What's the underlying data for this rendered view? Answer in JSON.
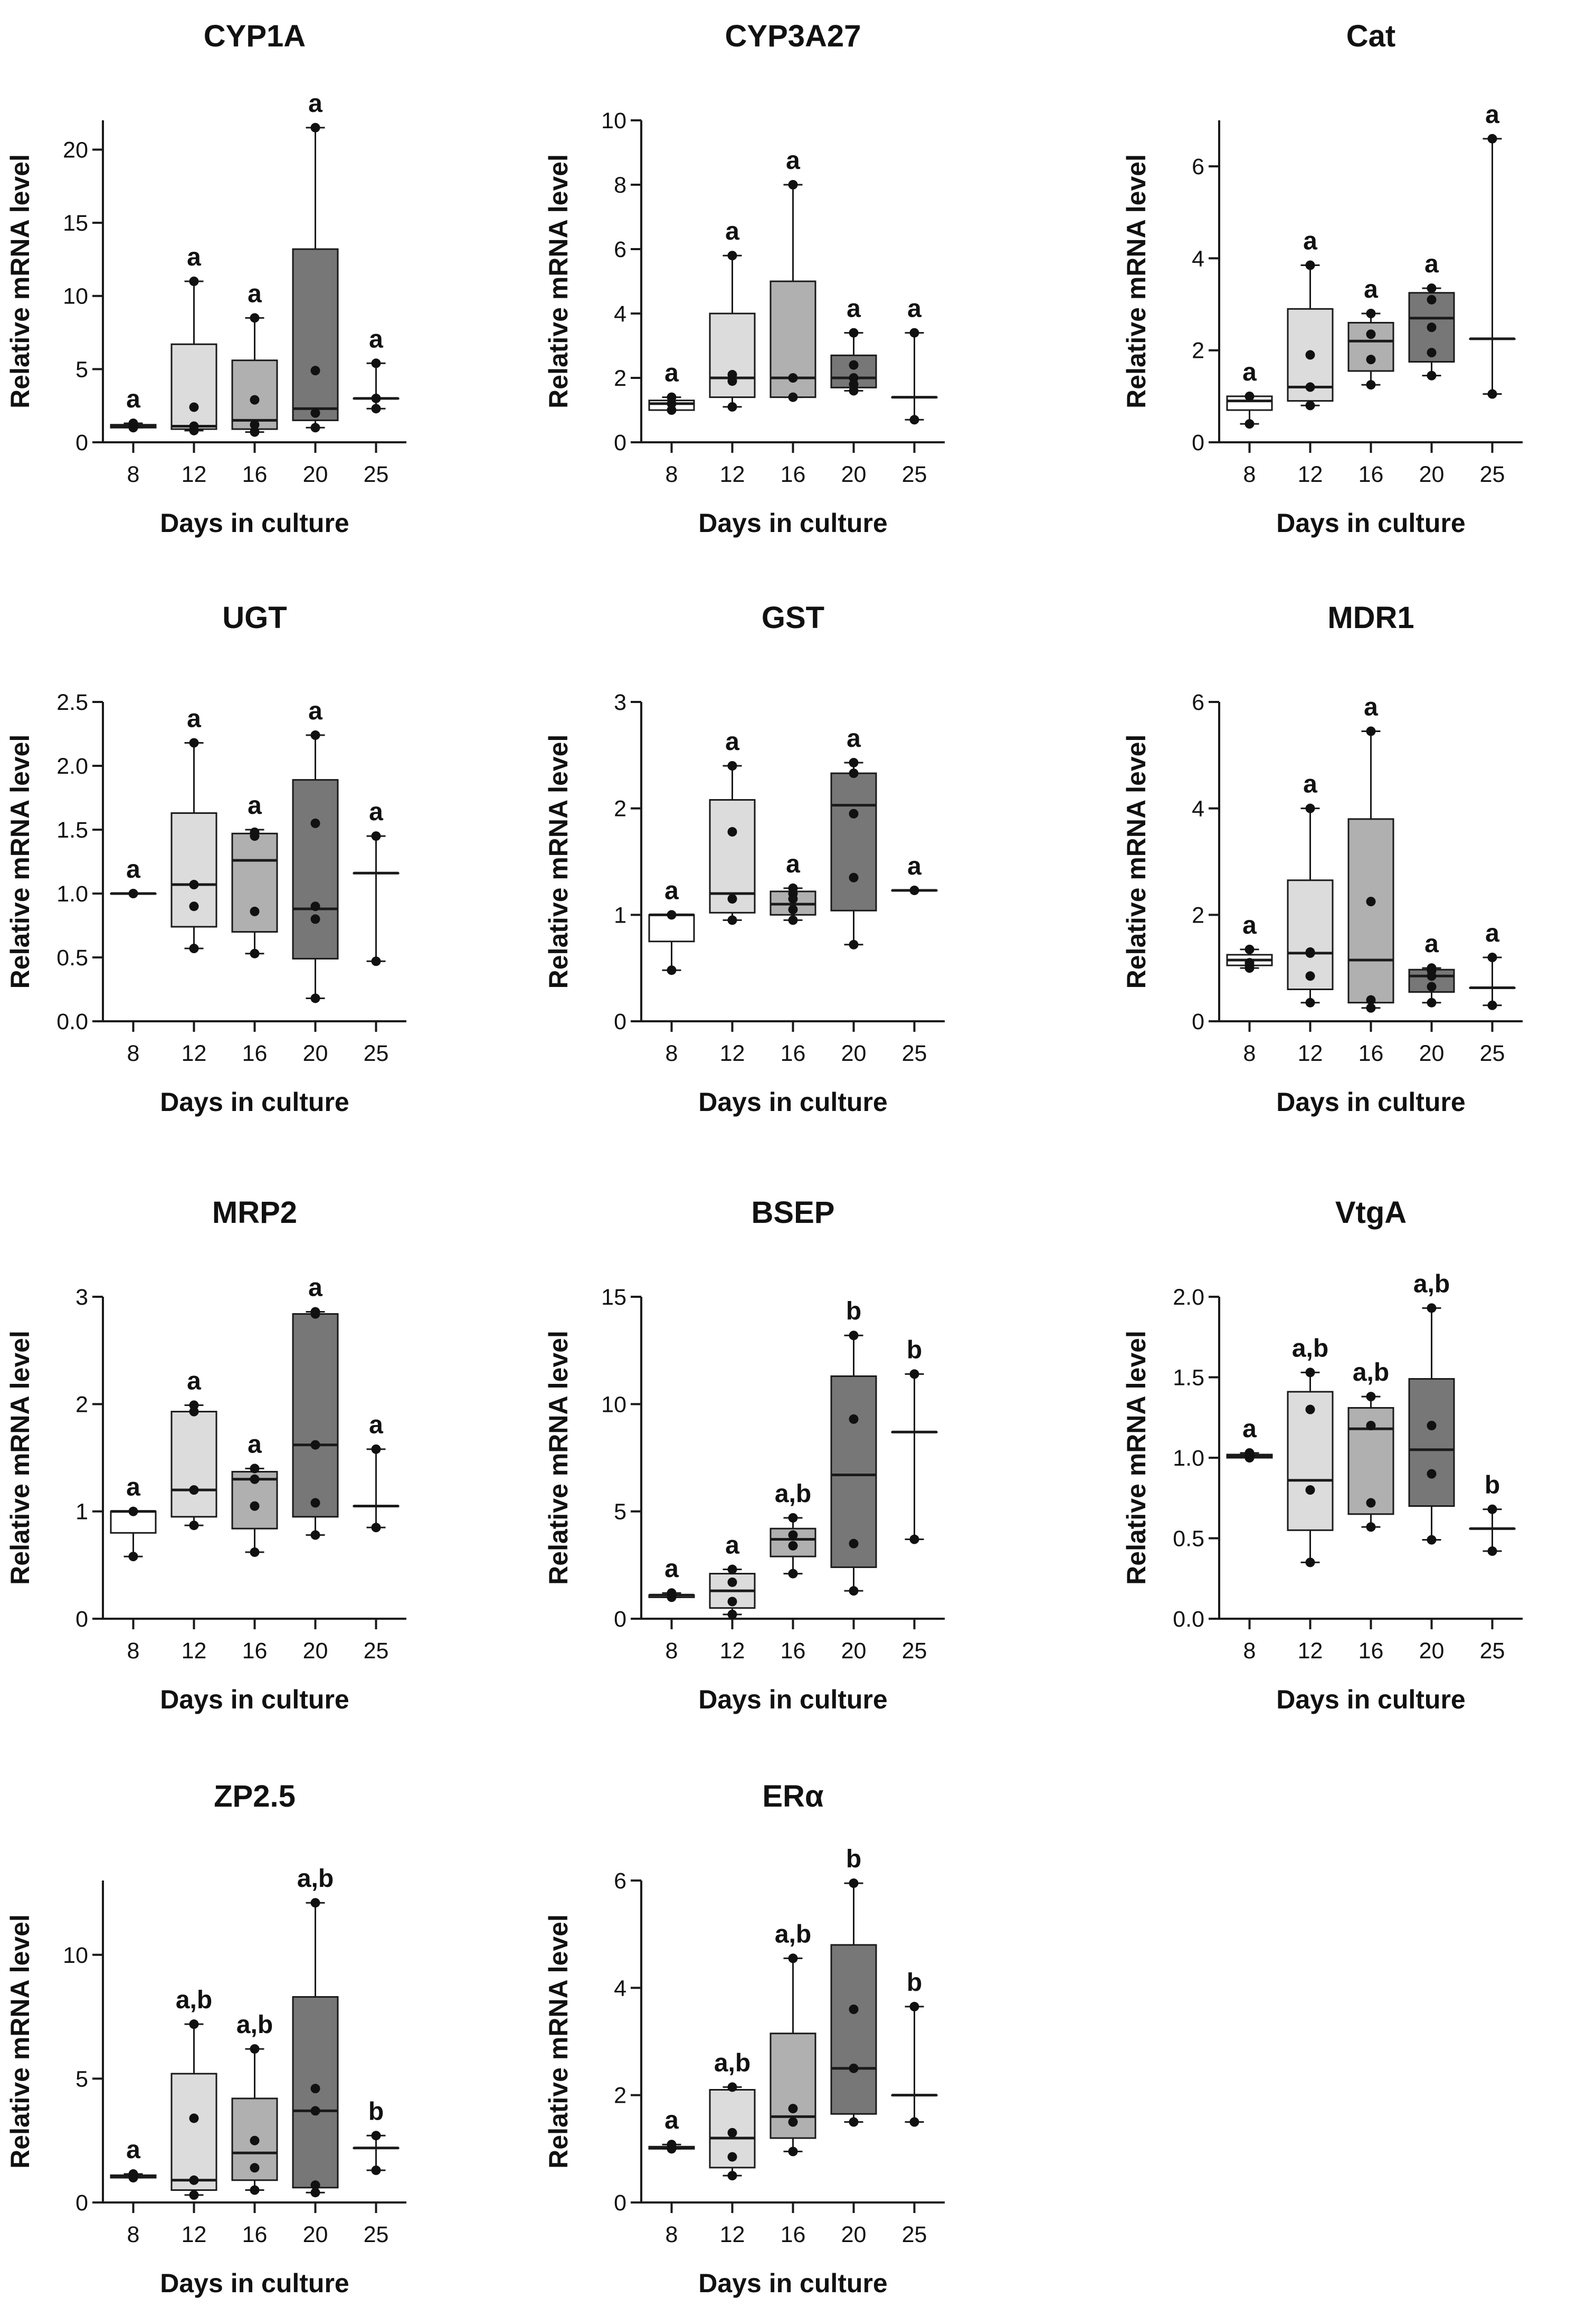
{
  "figure": {
    "xlabel": "Days in culture",
    "ylabel": "Relative mRNA level"
  },
  "colors": {
    "fills": [
      "#ffffff",
      "#dcdcdc",
      "#b0b0b0",
      "#777777",
      "#ffffff"
    ],
    "stroke": "#1a1a1a"
  },
  "chart_data": [
    {
      "type": "box",
      "title": "CYP1A",
      "xlabel": "Days in culture",
      "ylabel": "Relative mRNA level",
      "categories": [
        "8",
        "12",
        "16",
        "20",
        "25"
      ],
      "ylim": [
        0,
        22
      ],
      "yticks": [
        0,
        5,
        10,
        15,
        20
      ],
      "ytick_labels": [
        "0",
        "5",
        "10",
        "15",
        "20"
      ],
      "letters": [
        "a",
        "a",
        "a",
        "a",
        "a"
      ],
      "boxes": [
        {
          "min": 1.0,
          "q1": 1.0,
          "median": 1.1,
          "q3": 1.2,
          "max": 1.3,
          "points": [
            1.0,
            1.1,
            1.3
          ]
        },
        {
          "min": 0.8,
          "q1": 0.9,
          "median": 1.1,
          "q3": 6.7,
          "max": 11.0,
          "points": [
            0.8,
            1.1,
            2.4,
            11.0
          ]
        },
        {
          "min": 0.7,
          "q1": 0.9,
          "median": 1.5,
          "q3": 5.6,
          "max": 8.5,
          "points": [
            0.7,
            1.2,
            2.9,
            8.5
          ]
        },
        {
          "min": 1.0,
          "q1": 1.5,
          "median": 2.3,
          "q3": 13.2,
          "max": 21.5,
          "points": [
            1.0,
            2.0,
            4.9,
            21.5
          ]
        },
        {
          "min": 2.3,
          "q1": 3.0,
          "median": 3.0,
          "q3": 3.0,
          "max": 5.4,
          "points": [
            2.3,
            3.0,
            5.4
          ]
        }
      ]
    },
    {
      "type": "box",
      "title": "CYP3A27",
      "xlabel": "Days in culture",
      "ylabel": "Relative mRNA level",
      "categories": [
        "8",
        "12",
        "16",
        "20",
        "25"
      ],
      "ylim": [
        0,
        10
      ],
      "yticks": [
        0,
        2,
        4,
        6,
        8,
        10
      ],
      "ytick_labels": [
        "0",
        "2",
        "4",
        "6",
        "8",
        "10"
      ],
      "letters": [
        "a",
        "a",
        "a",
        "a",
        "a"
      ],
      "boxes": [
        {
          "min": 1.0,
          "q1": 1.0,
          "median": 1.2,
          "q3": 1.3,
          "max": 1.4,
          "points": [
            1.0,
            1.2,
            1.4
          ]
        },
        {
          "min": 1.1,
          "q1": 1.4,
          "median": 2.0,
          "q3": 4.0,
          "max": 5.8,
          "points": [
            1.1,
            1.9,
            2.1,
            5.8
          ]
        },
        {
          "min": 1.4,
          "q1": 1.4,
          "median": 2.0,
          "q3": 5.0,
          "max": 8.0,
          "points": [
            1.4,
            2.0,
            8.0
          ]
        },
        {
          "min": 1.6,
          "q1": 1.7,
          "median": 2.0,
          "q3": 2.7,
          "max": 3.4,
          "points": [
            1.6,
            1.8,
            2.0,
            2.4,
            3.4
          ]
        },
        {
          "min": 0.7,
          "q1": 1.4,
          "median": 1.4,
          "q3": 1.4,
          "max": 3.4,
          "points": [
            0.7,
            3.4
          ]
        }
      ]
    },
    {
      "type": "box",
      "title": "Cat",
      "xlabel": "Days in culture",
      "ylabel": "Relative mRNA level",
      "categories": [
        "8",
        "12",
        "16",
        "20",
        "25"
      ],
      "ylim": [
        0,
        7
      ],
      "yticks": [
        0,
        2,
        4,
        6
      ],
      "ytick_labels": [
        "0",
        "2",
        "4",
        "6"
      ],
      "letters": [
        "a",
        "a",
        "a",
        "a",
        "a"
      ],
      "boxes": [
        {
          "min": 0.4,
          "q1": 0.7,
          "median": 0.9,
          "q3": 1.0,
          "max": 1.0,
          "points": [
            0.4,
            1.0
          ]
        },
        {
          "min": 0.8,
          "q1": 0.9,
          "median": 1.2,
          "q3": 2.9,
          "max": 3.85,
          "points": [
            0.8,
            1.2,
            1.9,
            3.85
          ]
        },
        {
          "min": 1.25,
          "q1": 1.55,
          "median": 2.2,
          "q3": 2.6,
          "max": 2.8,
          "points": [
            1.25,
            1.8,
            2.35,
            2.8
          ]
        },
        {
          "min": 1.45,
          "q1": 1.75,
          "median": 2.7,
          "q3": 3.25,
          "max": 3.35,
          "points": [
            1.45,
            1.95,
            2.5,
            3.1,
            3.35
          ]
        },
        {
          "min": 1.05,
          "q1": 2.25,
          "median": 2.25,
          "q3": 2.25,
          "max": 6.6,
          "points": [
            1.05,
            6.6
          ]
        }
      ]
    },
    {
      "type": "box",
      "title": "UGT",
      "xlabel": "Days in culture",
      "ylabel": "Relative mRNA level",
      "categories": [
        "8",
        "12",
        "16",
        "20",
        "25"
      ],
      "ylim": [
        0,
        2.5
      ],
      "yticks": [
        0,
        0.5,
        1,
        1.5,
        2,
        2.5
      ],
      "ytick_labels": [
        "0.0",
        "0.5",
        "1.0",
        "1.5",
        "2.0",
        "2.5"
      ],
      "letters": [
        "a",
        "a",
        "a",
        "a",
        "a"
      ],
      "boxes": [
        {
          "min": 1.0,
          "q1": 1.0,
          "median": 1.0,
          "q3": 1.0,
          "max": 1.0,
          "points": [
            1.0
          ]
        },
        {
          "min": 0.57,
          "q1": 0.74,
          "median": 1.07,
          "q3": 1.63,
          "max": 2.18,
          "points": [
            0.57,
            0.9,
            1.07,
            2.18
          ]
        },
        {
          "min": 0.53,
          "q1": 0.7,
          "median": 1.26,
          "q3": 1.47,
          "max": 1.5,
          "points": [
            0.53,
            0.86,
            1.45,
            1.48
          ]
        },
        {
          "min": 0.18,
          "q1": 0.49,
          "median": 0.88,
          "q3": 1.89,
          "max": 2.24,
          "points": [
            0.18,
            0.8,
            0.9,
            1.55,
            2.24
          ]
        },
        {
          "min": 0.47,
          "q1": 1.16,
          "median": 1.16,
          "q3": 1.16,
          "max": 1.45,
          "points": [
            0.47,
            1.45
          ]
        }
      ]
    },
    {
      "type": "box",
      "title": "GST",
      "xlabel": "Days in culture",
      "ylabel": "Relative mRNA level",
      "categories": [
        "8",
        "12",
        "16",
        "20",
        "25"
      ],
      "ylim": [
        0,
        3
      ],
      "yticks": [
        0,
        1,
        2,
        3
      ],
      "ytick_labels": [
        "0",
        "1",
        "2",
        "3"
      ],
      "letters": [
        "a",
        "a",
        "a",
        "a",
        "a"
      ],
      "boxes": [
        {
          "min": 0.48,
          "q1": 0.75,
          "median": 1.0,
          "q3": 1.0,
          "max": 1.0,
          "points": [
            0.48,
            1.0
          ]
        },
        {
          "min": 0.95,
          "q1": 1.02,
          "median": 1.2,
          "q3": 2.08,
          "max": 2.4,
          "points": [
            0.95,
            1.15,
            1.78,
            2.4
          ]
        },
        {
          "min": 0.95,
          "q1": 1.0,
          "median": 1.1,
          "q3": 1.22,
          "max": 1.25,
          "points": [
            0.95,
            1.05,
            1.15,
            1.2,
            1.25
          ]
        },
        {
          "min": 0.72,
          "q1": 1.04,
          "median": 2.03,
          "q3": 2.33,
          "max": 2.43,
          "points": [
            0.72,
            1.35,
            1.95,
            2.33,
            2.43
          ]
        },
        {
          "min": 1.23,
          "q1": 1.23,
          "median": 1.23,
          "q3": 1.23,
          "max": 1.23,
          "points": [
            1.23
          ]
        }
      ]
    },
    {
      "type": "box",
      "title": "MDR1",
      "xlabel": "Days in culture",
      "ylabel": "Relative mRNA level",
      "categories": [
        "8",
        "12",
        "16",
        "20",
        "25"
      ],
      "ylim": [
        0,
        6
      ],
      "yticks": [
        0,
        2,
        4,
        6
      ],
      "ytick_labels": [
        "0",
        "2",
        "4",
        "6"
      ],
      "letters": [
        "a",
        "a",
        "a",
        "a",
        "a"
      ],
      "boxes": [
        {
          "min": 1.0,
          "q1": 1.05,
          "median": 1.15,
          "q3": 1.25,
          "max": 1.35,
          "points": [
            1.0,
            1.05,
            1.1,
            1.35
          ]
        },
        {
          "min": 0.35,
          "q1": 0.6,
          "median": 1.28,
          "q3": 2.65,
          "max": 4.0,
          "points": [
            0.35,
            0.85,
            1.28,
            1.3,
            4.0
          ]
        },
        {
          "min": 0.25,
          "q1": 0.35,
          "median": 1.15,
          "q3": 3.8,
          "max": 5.45,
          "points": [
            0.25,
            0.4,
            2.25,
            5.45
          ]
        },
        {
          "min": 0.35,
          "q1": 0.55,
          "median": 0.85,
          "q3": 0.97,
          "max": 1.0,
          "points": [
            0.35,
            0.65,
            0.85,
            0.95,
            1.0
          ]
        },
        {
          "min": 0.3,
          "q1": 0.63,
          "median": 0.63,
          "q3": 0.63,
          "max": 1.2,
          "points": [
            0.3,
            1.2
          ]
        }
      ]
    },
    {
      "type": "box",
      "title": "MRP2",
      "xlabel": "Days in culture",
      "ylabel": "Relative mRNA level",
      "categories": [
        "8",
        "12",
        "16",
        "20",
        "25"
      ],
      "ylim": [
        0,
        3
      ],
      "yticks": [
        0,
        1,
        2,
        3
      ],
      "ytick_labels": [
        "0",
        "1",
        "2",
        "3"
      ],
      "letters": [
        "a",
        "a",
        "a",
        "a",
        "a"
      ],
      "boxes": [
        {
          "min": 0.58,
          "q1": 0.8,
          "median": 1.0,
          "q3": 1.0,
          "max": 1.0,
          "points": [
            0.58,
            1.0
          ]
        },
        {
          "min": 0.87,
          "q1": 0.95,
          "median": 1.2,
          "q3": 1.93,
          "max": 1.99,
          "points": [
            0.87,
            1.2,
            1.93,
            1.99
          ]
        },
        {
          "min": 0.62,
          "q1": 0.84,
          "median": 1.3,
          "q3": 1.37,
          "max": 1.4,
          "points": [
            0.62,
            1.05,
            1.3,
            1.4
          ]
        },
        {
          "min": 0.78,
          "q1": 0.95,
          "median": 1.62,
          "q3": 2.84,
          "max": 2.86,
          "points": [
            0.78,
            1.08,
            1.62,
            2.84,
            2.86
          ]
        },
        {
          "min": 0.85,
          "q1": 1.05,
          "median": 1.05,
          "q3": 1.05,
          "max": 1.58,
          "points": [
            0.85,
            1.58
          ]
        }
      ]
    },
    {
      "type": "box",
      "title": "BSEP",
      "xlabel": "Days in culture",
      "ylabel": "Relative mRNA level",
      "categories": [
        "8",
        "12",
        "16",
        "20",
        "25"
      ],
      "ylim": [
        0,
        15
      ],
      "yticks": [
        0,
        5,
        10,
        15
      ],
      "ytick_labels": [
        "0",
        "5",
        "10",
        "15"
      ],
      "letters": [
        "a",
        "a",
        "a,b",
        "b",
        "b"
      ],
      "boxes": [
        {
          "min": 1.0,
          "q1": 1.0,
          "median": 1.1,
          "q3": 1.1,
          "max": 1.2,
          "points": [
            1.0,
            1.1,
            1.2
          ]
        },
        {
          "min": 0.2,
          "q1": 0.5,
          "median": 1.3,
          "q3": 2.1,
          "max": 2.3,
          "points": [
            0.2,
            0.8,
            1.7,
            2.3
          ]
        },
        {
          "min": 2.1,
          "q1": 2.9,
          "median": 3.7,
          "q3": 4.2,
          "max": 4.7,
          "points": [
            2.1,
            3.4,
            3.9,
            4.7
          ]
        },
        {
          "min": 1.3,
          "q1": 2.4,
          "median": 6.7,
          "q3": 11.3,
          "max": 13.2,
          "points": [
            1.3,
            3.5,
            9.3,
            13.2
          ]
        },
        {
          "min": 3.7,
          "q1": 8.7,
          "median": 8.7,
          "q3": 8.7,
          "max": 11.4,
          "points": [
            3.7,
            11.4
          ]
        }
      ]
    },
    {
      "type": "box",
      "title": "VtgA",
      "xlabel": "Days in culture",
      "ylabel": "Relative mRNA level",
      "categories": [
        "8",
        "12",
        "16",
        "20",
        "25"
      ],
      "ylim": [
        0,
        2
      ],
      "yticks": [
        0,
        0.5,
        1,
        1.5,
        2
      ],
      "ytick_labels": [
        "0.0",
        "0.5",
        "1.0",
        "1.5",
        "2.0"
      ],
      "letters": [
        "a",
        "a,b",
        "a,b",
        "a,b",
        "b"
      ],
      "boxes": [
        {
          "min": 1.0,
          "q1": 1.0,
          "median": 1.01,
          "q3": 1.02,
          "max": 1.03,
          "points": [
            1.0,
            1.01,
            1.03
          ]
        },
        {
          "min": 0.35,
          "q1": 0.55,
          "median": 0.86,
          "q3": 1.41,
          "max": 1.53,
          "points": [
            0.35,
            0.8,
            1.3,
            1.53
          ]
        },
        {
          "min": 0.57,
          "q1": 0.65,
          "median": 1.18,
          "q3": 1.31,
          "max": 1.38,
          "points": [
            0.57,
            0.72,
            1.2,
            1.38
          ]
        },
        {
          "min": 0.49,
          "q1": 0.7,
          "median": 1.05,
          "q3": 1.49,
          "max": 1.93,
          "points": [
            0.49,
            0.9,
            1.2,
            1.93
          ]
        },
        {
          "min": 0.42,
          "q1": 0.56,
          "median": 0.56,
          "q3": 0.56,
          "max": 0.68,
          "points": [
            0.42,
            0.68
          ]
        }
      ]
    },
    {
      "type": "box",
      "title": "ZP2.5",
      "xlabel": "Days in culture",
      "ylabel": "Relative mRNA level",
      "categories": [
        "8",
        "12",
        "16",
        "20",
        "25"
      ],
      "ylim": [
        0,
        13
      ],
      "yticks": [
        0,
        5,
        10
      ],
      "ytick_labels": [
        "0",
        "5",
        "10"
      ],
      "letters": [
        "a",
        "a,b",
        "a,b",
        "a,b",
        "b"
      ],
      "boxes": [
        {
          "min": 1.0,
          "q1": 1.0,
          "median": 1.05,
          "q3": 1.1,
          "max": 1.15,
          "points": [
            1.0,
            1.05,
            1.15
          ]
        },
        {
          "min": 0.3,
          "q1": 0.5,
          "median": 0.9,
          "q3": 5.2,
          "max": 7.2,
          "points": [
            0.3,
            0.9,
            3.4,
            7.2
          ]
        },
        {
          "min": 0.5,
          "q1": 0.9,
          "median": 2.0,
          "q3": 4.2,
          "max": 6.2,
          "points": [
            0.5,
            1.4,
            2.5,
            6.2
          ]
        },
        {
          "min": 0.4,
          "q1": 0.6,
          "median": 3.7,
          "q3": 8.3,
          "max": 12.1,
          "points": [
            0.4,
            0.7,
            3.7,
            4.6,
            12.1
          ]
        },
        {
          "min": 1.3,
          "q1": 2.2,
          "median": 2.2,
          "q3": 2.2,
          "max": 2.7,
          "points": [
            1.3,
            2.7
          ]
        }
      ]
    },
    {
      "type": "box",
      "title": "ERα",
      "xlabel": "Days in culture",
      "ylabel": "Relative mRNA level",
      "categories": [
        "8",
        "12",
        "16",
        "20",
        "25"
      ],
      "ylim": [
        0,
        6
      ],
      "yticks": [
        0,
        2,
        4,
        6
      ],
      "ytick_labels": [
        "0",
        "2",
        "4",
        "6"
      ],
      "letters": [
        "a",
        "a,b",
        "a,b",
        "b",
        "b"
      ],
      "boxes": [
        {
          "min": 1.0,
          "q1": 1.0,
          "median": 1.02,
          "q3": 1.04,
          "max": 1.08,
          "points": [
            1.0,
            1.08
          ]
        },
        {
          "min": 0.5,
          "q1": 0.65,
          "median": 1.2,
          "q3": 2.1,
          "max": 2.15,
          "points": [
            0.5,
            0.85,
            1.3,
            2.15
          ]
        },
        {
          "min": 0.95,
          "q1": 1.2,
          "median": 1.6,
          "q3": 3.15,
          "max": 4.55,
          "points": [
            0.95,
            1.5,
            1.75,
            4.55
          ]
        },
        {
          "min": 1.5,
          "q1": 1.65,
          "median": 2.5,
          "q3": 4.8,
          "max": 5.95,
          "points": [
            1.5,
            2.5,
            3.6,
            5.95
          ]
        },
        {
          "min": 1.5,
          "q1": 2.0,
          "median": 2.0,
          "q3": 2.0,
          "max": 3.65,
          "points": [
            1.5,
            3.65
          ]
        }
      ]
    }
  ]
}
